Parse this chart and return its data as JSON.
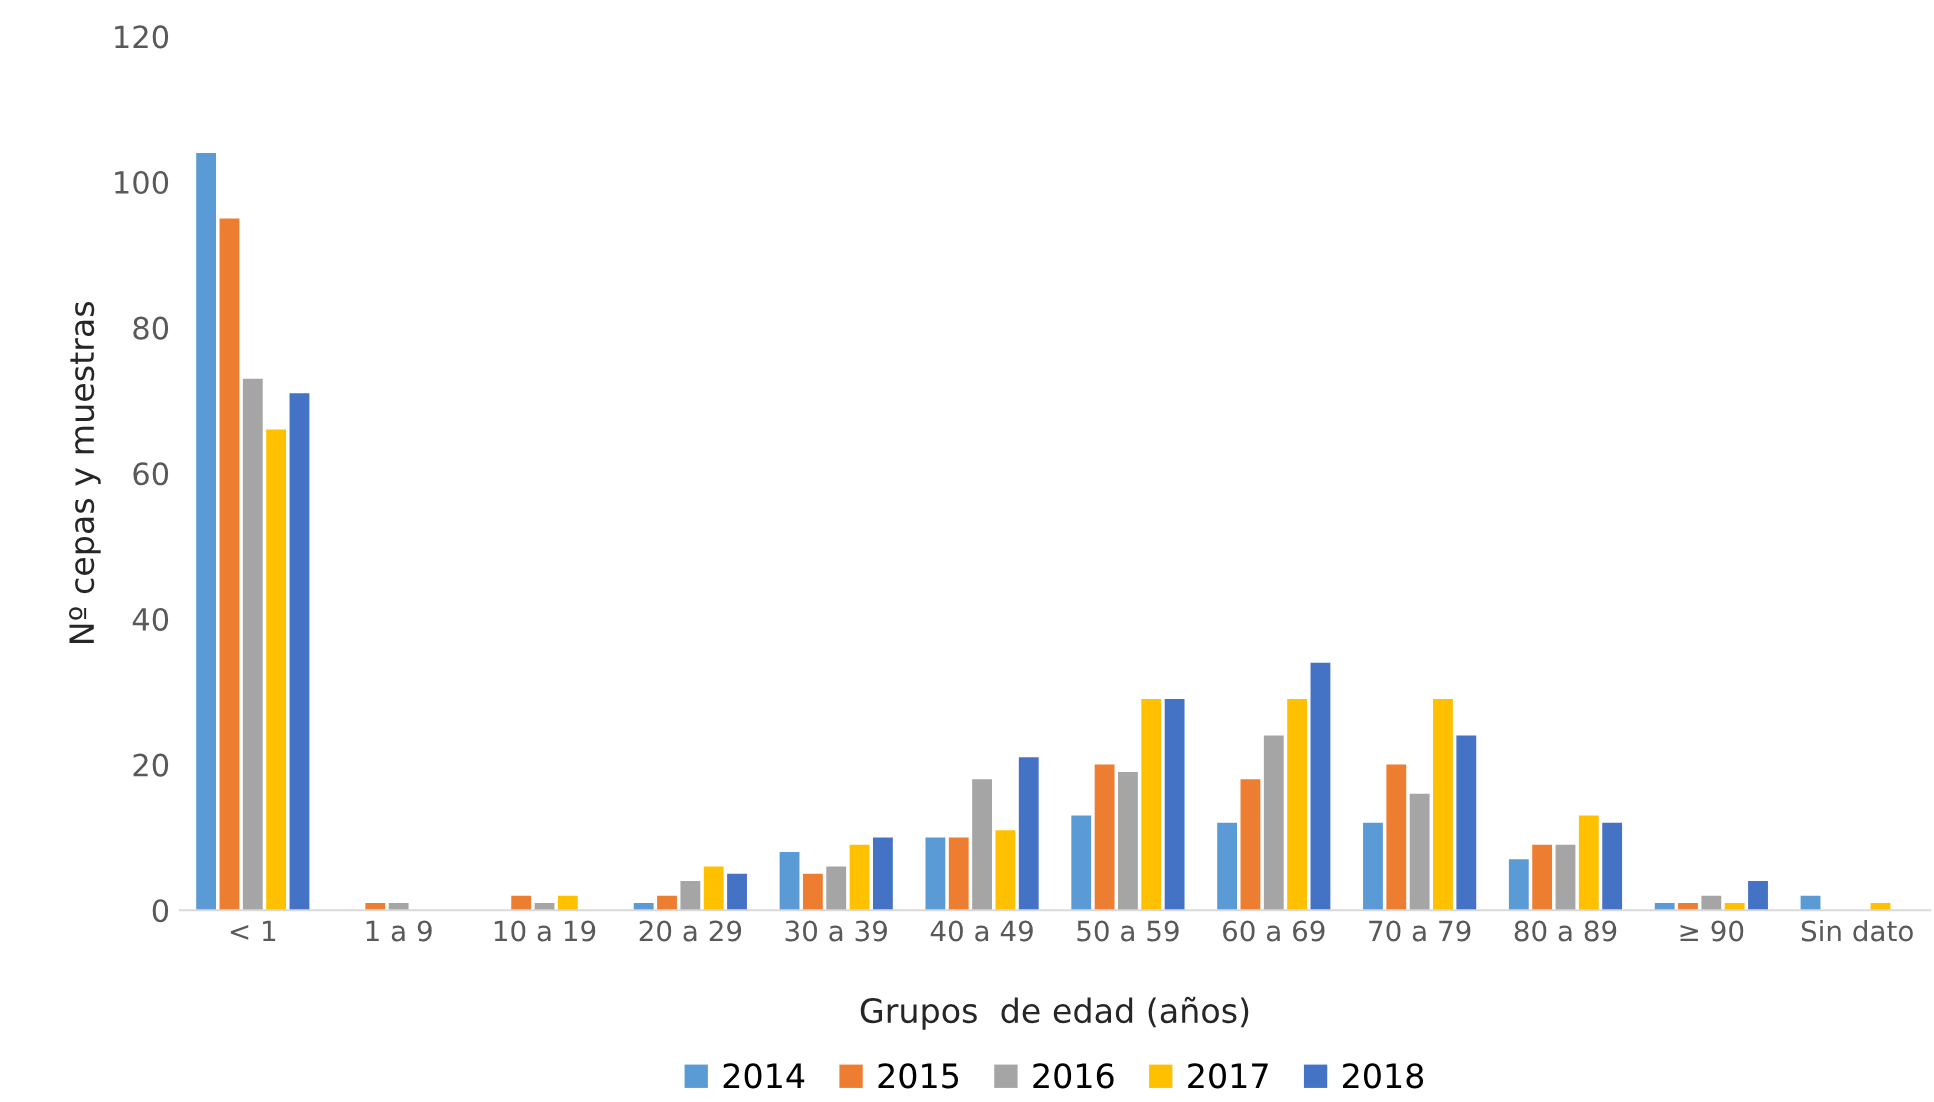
{
  "chart_data": {
    "type": "bar",
    "xlabel": "Grupos  de edad (años)",
    "ylabel": "Nº cepas y muestras",
    "categories": [
      "< 1",
      "1 a 9",
      "10 a 19",
      "20 a 29",
      "30 a 39",
      "40 a 49",
      "50 a 59",
      "60 a 69",
      "70 a 79",
      "80 a 89",
      "≥ 90",
      "Sin dato"
    ],
    "series": [
      {
        "name": "2014",
        "color": "#5b9bd5",
        "values": [
          104,
          0,
          0,
          1,
          8,
          10,
          13,
          12,
          12,
          7,
          1,
          2
        ]
      },
      {
        "name": "2015",
        "color": "#ed7d31",
        "values": [
          95,
          1,
          2,
          2,
          5,
          10,
          20,
          18,
          20,
          9,
          1,
          0
        ]
      },
      {
        "name": "2016",
        "color": "#a5a5a5",
        "values": [
          73,
          1,
          1,
          4,
          6,
          18,
          19,
          24,
          16,
          9,
          2,
          0
        ]
      },
      {
        "name": "2017",
        "color": "#ffc000",
        "values": [
          66,
          0,
          2,
          6,
          9,
          11,
          29,
          29,
          29,
          13,
          1,
          1
        ]
      },
      {
        "name": "2018",
        "color": "#4472c4",
        "values": [
          71,
          0,
          0,
          5,
          10,
          21,
          29,
          34,
          24,
          12,
          4,
          0
        ]
      }
    ],
    "ylim": [
      0,
      120
    ],
    "yticks": [
      0,
      20,
      40,
      60,
      80,
      100,
      120
    ],
    "grid": false,
    "legend": "bottom"
  }
}
